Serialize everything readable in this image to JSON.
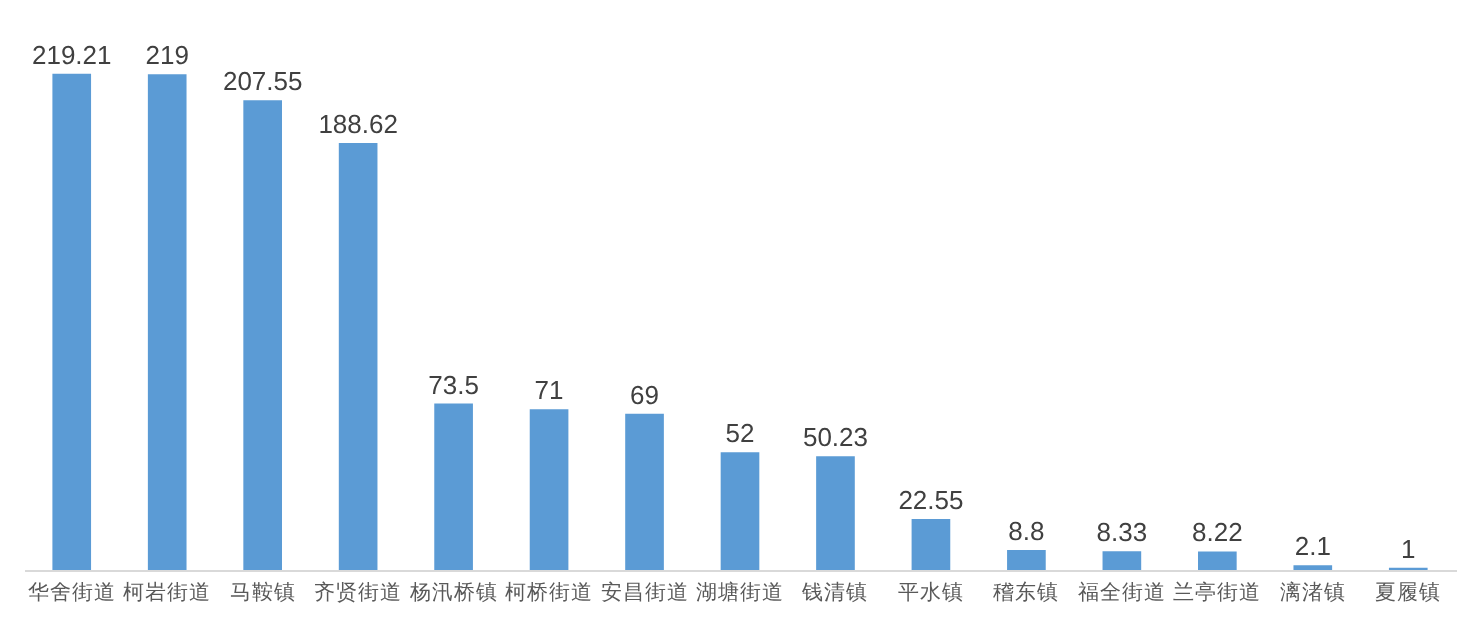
{
  "chart_data": {
    "type": "bar",
    "categories": [
      "华舍街道",
      "柯岩街道",
      "马鞍镇",
      "齐贤街道",
      "杨汛桥镇",
      "柯桥街道",
      "安昌街道",
      "湖塘街道",
      "钱清镇",
      "平水镇",
      "稽东镇",
      "福全街道",
      "兰亭街道",
      "漓渚镇",
      "夏履镇"
    ],
    "values": [
      219.21,
      219,
      207.55,
      188.62,
      73.5,
      71,
      69,
      52,
      50.23,
      22.55,
      8.8,
      8.33,
      8.22,
      2.1,
      1
    ],
    "color": "#5b9bd5",
    "data_labels": true
  }
}
